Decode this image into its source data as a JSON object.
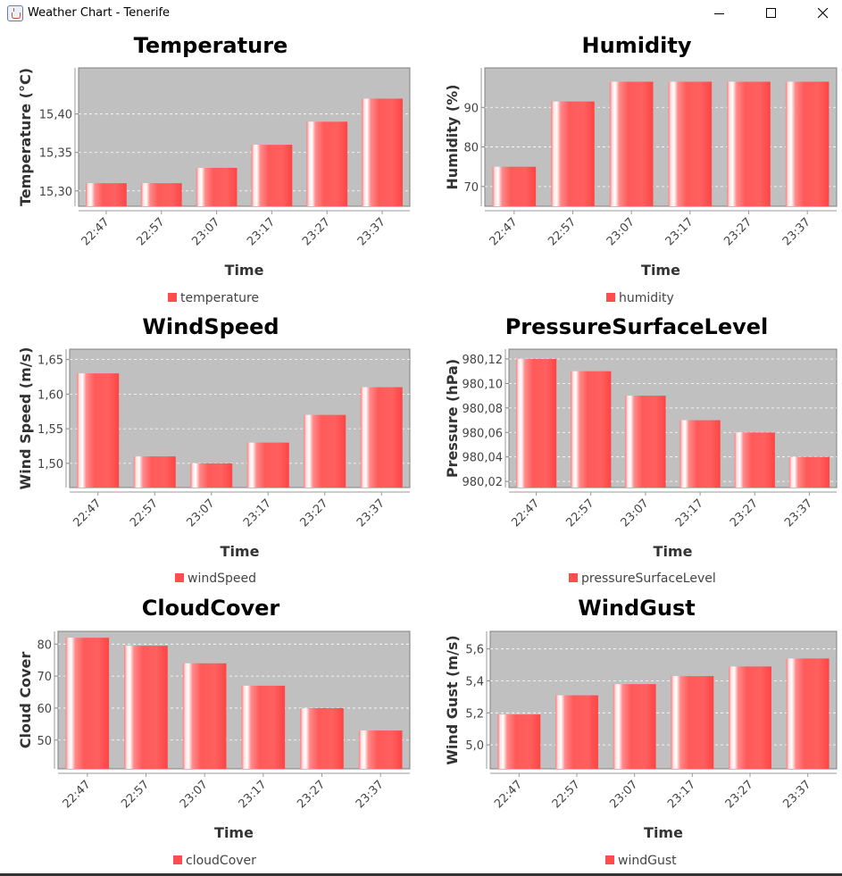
{
  "window": {
    "title": "Weather Chart - Tenerife"
  },
  "chart_data": [
    {
      "type": "bar",
      "title": "Temperature",
      "xlabel": "Time",
      "ylabel": "Temperature (°C)",
      "categories": [
        "22:47",
        "22:57",
        "23:07",
        "23:17",
        "23:27",
        "23:37"
      ],
      "series": [
        {
          "name": "temperature",
          "values": [
            15.31,
            15.31,
            15.33,
            15.36,
            15.39,
            15.42
          ]
        }
      ],
      "ylim": [
        15.28,
        15.46
      ],
      "yticks": [
        15.3,
        15.35,
        15.4
      ],
      "ytick_labels": [
        "15,30",
        "15,35",
        "15,40"
      ],
      "legend": "bottom",
      "grid": true
    },
    {
      "type": "bar",
      "title": "Humidity",
      "xlabel": "Time",
      "ylabel": "Humidity (%)",
      "categories": [
        "22:47",
        "22:57",
        "23:07",
        "23:17",
        "23:27",
        "23:37"
      ],
      "series": [
        {
          "name": "humidity",
          "values": [
            75,
            91.5,
            96.5,
            96.5,
            96.5,
            96.5
          ]
        }
      ],
      "ylim": [
        65,
        100
      ],
      "yticks": [
        70,
        80,
        90
      ],
      "ytick_labels": [
        "70",
        "80",
        "90"
      ],
      "legend": "bottom",
      "grid": true
    },
    {
      "type": "bar",
      "title": "WindSpeed",
      "xlabel": "Time",
      "ylabel": "Wind Speed (m/s)",
      "categories": [
        "22:47",
        "22:57",
        "23:07",
        "23:17",
        "23:27",
        "23:37"
      ],
      "series": [
        {
          "name": "windSpeed",
          "values": [
            1.63,
            1.51,
            1.5,
            1.53,
            1.57,
            1.61
          ]
        }
      ],
      "ylim": [
        1.465,
        1.665
      ],
      "yticks": [
        1.5,
        1.55,
        1.6,
        1.65
      ],
      "ytick_labels": [
        "1,50",
        "1,55",
        "1,60",
        "1,65"
      ],
      "legend": "bottom",
      "grid": true
    },
    {
      "type": "bar",
      "title": "PressureSurfaceLevel",
      "xlabel": "Time",
      "ylabel": "Pressure (hPa)",
      "categories": [
        "22:47",
        "22:57",
        "23:07",
        "23:17",
        "23:27",
        "23:37"
      ],
      "series": [
        {
          "name": "pressureSurfaceLevel",
          "values": [
            980.12,
            980.11,
            980.09,
            980.07,
            980.06,
            980.04
          ]
        }
      ],
      "ylim": [
        980.015,
        980.128
      ],
      "yticks": [
        980.02,
        980.04,
        980.06,
        980.08,
        980.1,
        980.12
      ],
      "ytick_labels": [
        "980,02",
        "980,04",
        "980,06",
        "980,08",
        "980,10",
        "980,12"
      ],
      "legend": "bottom",
      "grid": true
    },
    {
      "type": "bar",
      "title": "CloudCover",
      "xlabel": "Time",
      "ylabel": "Cloud Cover",
      "categories": [
        "22:47",
        "22:57",
        "23:07",
        "23:17",
        "23:27",
        "23:37"
      ],
      "series": [
        {
          "name": "cloudCover",
          "values": [
            82,
            79.5,
            74,
            67,
            60,
            53
          ]
        }
      ],
      "ylim": [
        41,
        84
      ],
      "yticks": [
        50,
        60,
        70,
        80
      ],
      "ytick_labels": [
        "50",
        "60",
        "70",
        "80"
      ],
      "legend": "bottom",
      "grid": true
    },
    {
      "type": "bar",
      "title": "WindGust",
      "xlabel": "Time",
      "ylabel": "Wind Gust (m/s)",
      "categories": [
        "22:47",
        "22:57",
        "23:07",
        "23:17",
        "23:27",
        "23:37"
      ],
      "series": [
        {
          "name": "windGust",
          "values": [
            5.19,
            5.31,
            5.38,
            5.43,
            5.49,
            5.54
          ]
        }
      ],
      "ylim": [
        4.85,
        5.71
      ],
      "yticks": [
        5.0,
        5.2,
        5.4,
        5.6
      ],
      "ytick_labels": [
        "5,0",
        "5,2",
        "5,4",
        "5,6"
      ],
      "legend": "bottom",
      "grid": true
    }
  ],
  "colors": {
    "bar_base": "#ff5a5a",
    "bar_highlight": "#ffffff",
    "plot_background": "#c0c0c0",
    "gridline": "#ffffff",
    "legend_swatch": "#ff4d4d",
    "axis_text": "#444444"
  },
  "icons": {
    "app": "java-cup-icon",
    "minimize": "minimize-icon",
    "maximize": "maximize-icon",
    "close": "close-icon"
  }
}
